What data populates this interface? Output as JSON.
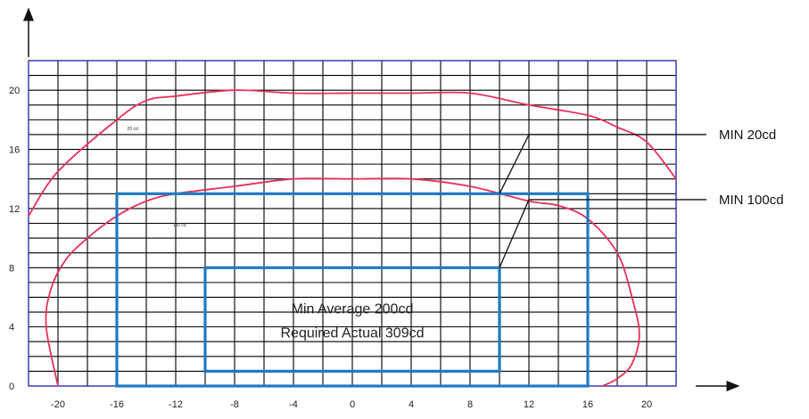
{
  "chart_data": {
    "type": "line",
    "title": "",
    "xlabel": "",
    "ylabel": "",
    "xlim": [
      -22,
      22
    ],
    "ylim": [
      0,
      22
    ],
    "grid": true,
    "x_ticks": [
      -20,
      -16,
      -12,
      -8,
      -4,
      0,
      4,
      8,
      12,
      16,
      20
    ],
    "y_ticks": [
      0,
      4,
      8,
      12,
      16,
      20
    ],
    "colors": {
      "curve": "#e8305a",
      "box": "#1f7ac4",
      "grid": "#000000",
      "frame": "#2d2db0"
    },
    "series": [
      {
        "name": "MIN 20cd",
        "curve_label": "20 cd",
        "x": [
          -22,
          -20,
          -16,
          -14,
          -12,
          -8,
          -4,
          0,
          4,
          8,
          12,
          16,
          18,
          20,
          22
        ],
        "y": [
          11.5,
          14.5,
          18,
          19.3,
          19.6,
          20,
          19.8,
          19.8,
          19.8,
          19.8,
          19,
          18.3,
          17.5,
          16.5,
          14
        ]
      },
      {
        "name": "MIN 100cd",
        "curve_label": "100 cd",
        "x": [
          -20,
          -20.8,
          -20.5,
          -19.5,
          -18,
          -16,
          -14,
          -12,
          -8,
          -4,
          0,
          4,
          8,
          12,
          14,
          16,
          18,
          19,
          19.5,
          19,
          18,
          17
        ],
        "y": [
          0,
          4,
          6.5,
          8.5,
          10,
          11.5,
          12.5,
          13,
          13.5,
          14,
          14,
          14,
          13.5,
          12.5,
          12.2,
          11.3,
          9,
          6,
          3.5,
          1.5,
          0.5,
          0
        ]
      }
    ],
    "regions": [
      {
        "name": "outer-box",
        "x": [
          -16,
          16
        ],
        "y": [
          0,
          13
        ]
      },
      {
        "name": "inner-box",
        "x": [
          -10,
          10
        ],
        "y": [
          1,
          8
        ],
        "text": [
          "Min Average 200cd",
          "Required Actual 309cd"
        ]
      }
    ],
    "annotations": [
      {
        "label": "MIN 20cd",
        "points_to": [
          10,
          13
        ],
        "elbow": [
          12,
          17
        ]
      },
      {
        "label": "MIN 100cd",
        "points_to": [
          10,
          8
        ],
        "elbow": [
          12,
          12.6
        ]
      }
    ]
  }
}
